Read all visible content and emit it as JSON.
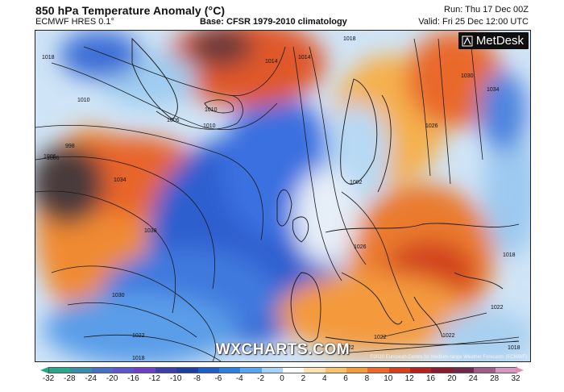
{
  "header": {
    "title": "850 hPa Temperature Anomaly (°C)",
    "model": "ECMWF HRES 0.1°",
    "base": "Base: CFSR 1979-2010 climatology",
    "run": "Run: Thu 17 Dec 00Z",
    "valid": "Valid: Fri 25 Dec 12:00 UTC"
  },
  "map": {
    "logo_text": "MetDesk",
    "watermark": "WXCHARTS.COM",
    "copyright": "©2020 European Centre for Medium-range Weather Forecasts (ECMWF)",
    "isobar_labels": [
      "1018",
      "1022",
      "1018",
      "1014",
      "1014",
      "1010",
      "1010",
      "1006",
      "1010",
      "1006",
      "998",
      "1006",
      "1034",
      "1038",
      "1030",
      "1022",
      "1018",
      "1002",
      "1022",
      "1026",
      "1030",
      "1034",
      "1026",
      "1022",
      "1022",
      "1018",
      "1018"
    ]
  },
  "colorbar": {
    "ticks": [
      "-32",
      "-28",
      "-24",
      "-20",
      "-16",
      "-12",
      "-10",
      "-8",
      "-6",
      "-4",
      "-2",
      "0",
      "2",
      "4",
      "6",
      "8",
      "10",
      "12",
      "16",
      "20",
      "24",
      "28",
      "32"
    ],
    "colors": [
      "#2aa98a",
      "#3a8fa8",
      "#4b6fc0",
      "#5d55c8",
      "#6e41c4",
      "#3b3fa8",
      "#1f3fa0",
      "#1f5ec6",
      "#2f7fdc",
      "#5aa6ee",
      "#a9d3f6",
      "#ffffff",
      "#fce2b0",
      "#f8c26c",
      "#f39a3a",
      "#e9692a",
      "#d5401f",
      "#b32420",
      "#8c1b2e",
      "#6e2a4a",
      "#9c5e88",
      "#d39bc4"
    ]
  }
}
